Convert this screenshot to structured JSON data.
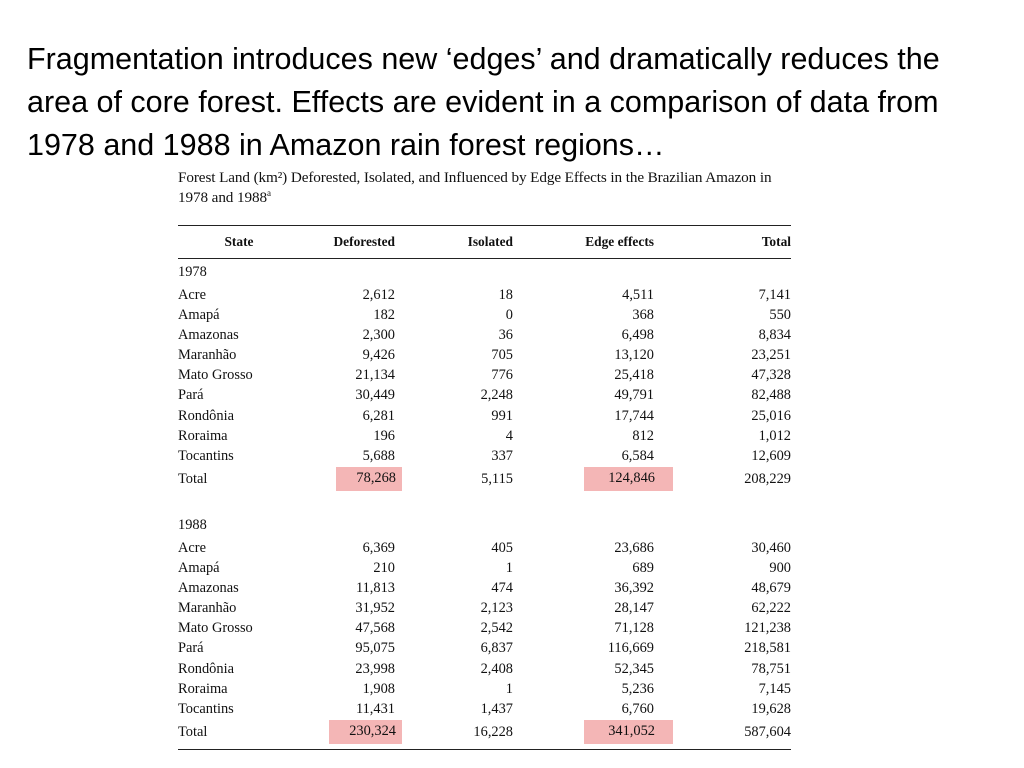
{
  "slide": {
    "text": "Fragmentation introduces new ‘edges’ and dramatically reduces the area of core forest. Effects are evident in a comparison of data from 1978 and 1988 in Amazon rain forest regions…"
  },
  "table": {
    "caption_main": "Forest Land (km²) Deforested, Isolated, and Influenced by Edge Effects in the Brazilian Amazon in 1978 and 1988",
    "caption_footnote_mark": "a",
    "columns": [
      "State",
      "Deforested",
      "Isolated",
      "Edge effects",
      "Total"
    ],
    "highlight_color": "#f4b6b6",
    "groups": [
      {
        "year": "1978",
        "rows": [
          {
            "state": "Acre",
            "deforested": "2,612",
            "isolated": "18",
            "edge": "4,511",
            "total": "7,141"
          },
          {
            "state": "Amapá",
            "deforested": "182",
            "isolated": "0",
            "edge": "368",
            "total": "550"
          },
          {
            "state": "Amazonas",
            "deforested": "2,300",
            "isolated": "36",
            "edge": "6,498",
            "total": "8,834"
          },
          {
            "state": "Maranhão",
            "deforested": "9,426",
            "isolated": "705",
            "edge": "13,120",
            "total": "23,251"
          },
          {
            "state": "Mato Grosso",
            "deforested": "21,134",
            "isolated": "776",
            "edge": "25,418",
            "total": "47,328"
          },
          {
            "state": "Pará",
            "deforested": "30,449",
            "isolated": "2,248",
            "edge": "49,791",
            "total": "82,488"
          },
          {
            "state": "Rondônia",
            "deforested": "6,281",
            "isolated": "991",
            "edge": "17,744",
            "total": "25,016"
          },
          {
            "state": "Roraima",
            "deforested": "196",
            "isolated": "4",
            "edge": "812",
            "total": "1,012"
          },
          {
            "state": "Tocantins",
            "deforested": "5,688",
            "isolated": "337",
            "edge": "6,584",
            "total": "12,609"
          }
        ],
        "total": {
          "state": "Total",
          "deforested": "78,268",
          "isolated": "5,115",
          "edge": "124,846",
          "total": "208,229"
        }
      },
      {
        "year": "1988",
        "rows": [
          {
            "state": "Acre",
            "deforested": "6,369",
            "isolated": "405",
            "edge": "23,686",
            "total": "30,460"
          },
          {
            "state": "Amapá",
            "deforested": "210",
            "isolated": "1",
            "edge": "689",
            "total": "900"
          },
          {
            "state": "Amazonas",
            "deforested": "11,813",
            "isolated": "474",
            "edge": "36,392",
            "total": "48,679"
          },
          {
            "state": "Maranhão",
            "deforested": "31,952",
            "isolated": "2,123",
            "edge": "28,147",
            "total": "62,222"
          },
          {
            "state": "Mato Grosso",
            "deforested": "47,568",
            "isolated": "2,542",
            "edge": "71,128",
            "total": "121,238"
          },
          {
            "state": "Pará",
            "deforested": "95,075",
            "isolated": "6,837",
            "edge": "116,669",
            "total": "218,581"
          },
          {
            "state": "Rondônia",
            "deforested": "23,998",
            "isolated": "2,408",
            "edge": "52,345",
            "total": "78,751"
          },
          {
            "state": "Roraima",
            "deforested": "1,908",
            "isolated": "1",
            "edge": "5,236",
            "total": "7,145"
          },
          {
            "state": "Tocantins",
            "deforested": "11,431",
            "isolated": "1,437",
            "edge": "6,760",
            "total": "19,628"
          }
        ],
        "total": {
          "state": "Total",
          "deforested": "230,324",
          "isolated": "16,228",
          "edge": "341,052",
          "total": "587,604"
        }
      }
    ]
  }
}
